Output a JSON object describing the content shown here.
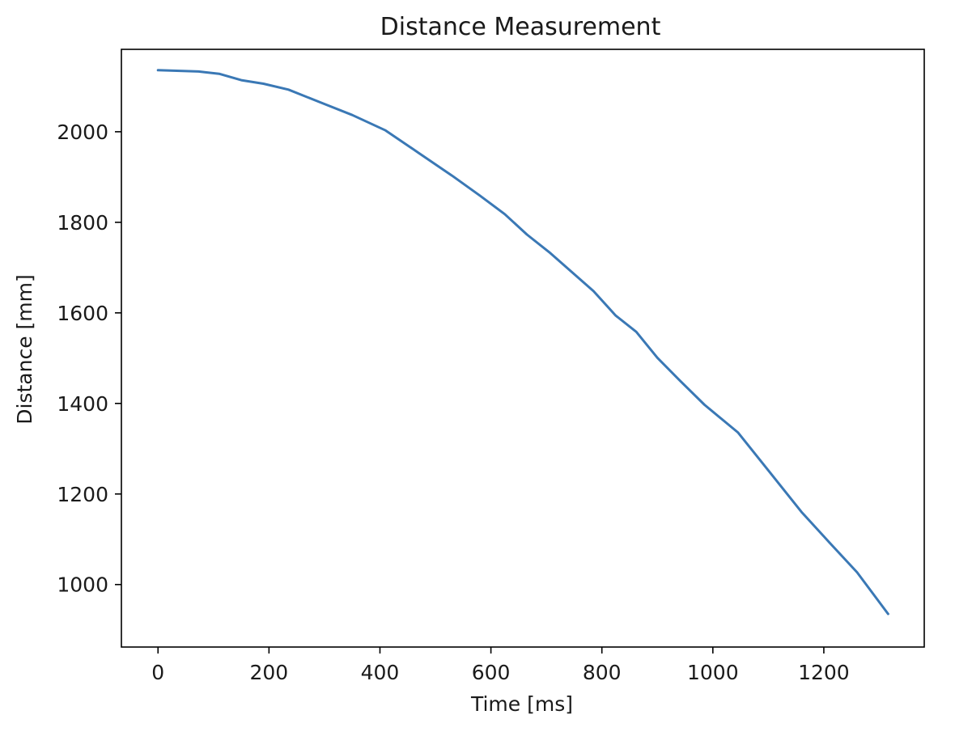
{
  "chart_data": {
    "type": "line",
    "title": "Distance Measurement",
    "xlabel": "Time [ms]",
    "ylabel": "Distance [mm]",
    "xlim": [
      -66,
      1381
    ],
    "ylim": [
      862,
      2182
    ],
    "xticks": [
      0,
      200,
      400,
      600,
      800,
      1000,
      1200
    ],
    "yticks": [
      1000,
      1200,
      1400,
      1600,
      1800,
      2000
    ],
    "grid": false,
    "line_color": "#3a78b5",
    "series": [
      {
        "name": "distance",
        "x": [
          0,
          73,
          110,
          150,
          190,
          235,
          290,
          350,
          410,
          470,
          530,
          580,
          625,
          665,
          705,
          745,
          785,
          825,
          862,
          900,
          940,
          985,
          1045,
          1100,
          1160,
          1210,
          1260,
          1316
        ],
        "y": [
          2136,
          2133,
          2128,
          2114,
          2106,
          2093,
          2066,
          2037,
          2003,
          1953,
          1903,
          1859,
          1818,
          1773,
          1734,
          1691,
          1648,
          1594,
          1558,
          1501,
          1451,
          1397,
          1336,
          1252,
          1160,
          1093,
          1027,
          935
        ]
      }
    ]
  }
}
